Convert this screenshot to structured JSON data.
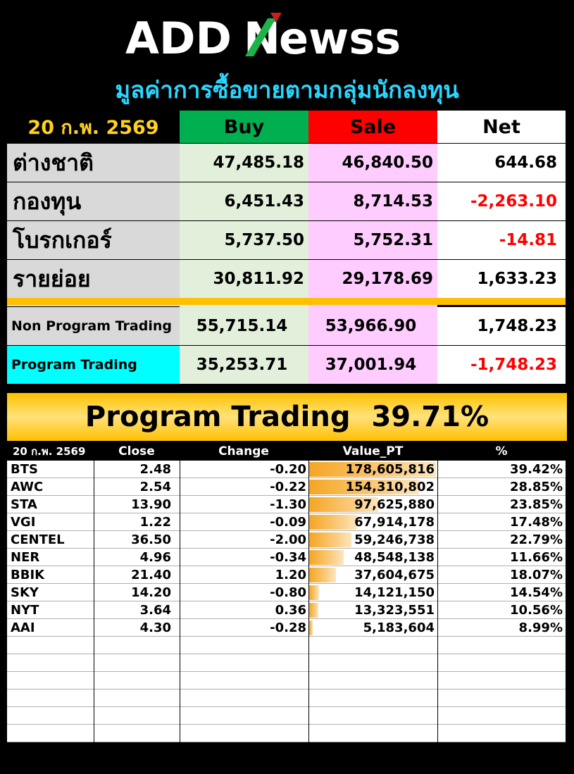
{
  "logo": {
    "text_left": "ADD",
    "text_mid": "N",
    "text_right": "ewss"
  },
  "subtitle": "มูลค่าการซื้อขายตามกลุ่มนักลงทุน",
  "summary": {
    "date": "20 ก.พ. 2569",
    "headers": {
      "buy": "Buy",
      "sale": "Sale",
      "net": "Net"
    },
    "rows": [
      {
        "label": "ต่างชาติ",
        "buy": "47,485.18",
        "sale": "46,840.50",
        "net": "644.68"
      },
      {
        "label": "กองทุน",
        "buy": "6,451.43",
        "sale": "8,714.53",
        "net": "-2,263.10"
      },
      {
        "label": "โบรกเกอร์",
        "buy": "5,737.50",
        "sale": "5,752.31",
        "net": "-14.81"
      },
      {
        "label": "รายย่อย",
        "buy": "30,811.92",
        "sale": "29,178.69",
        "net": "1,633.23"
      }
    ],
    "program_rows": [
      {
        "label": "Non Program Trading",
        "buy": "55,715.14",
        "sale": "53,966.90",
        "net": "1,748.23"
      },
      {
        "label": "Program Trading",
        "buy": "35,253.71",
        "sale": "37,001.94",
        "net": "-1,748.23"
      }
    ]
  },
  "banner": {
    "label": "Program Trading",
    "value": "39.71%"
  },
  "table": {
    "headers": {
      "date": "20 ก.พ. 2569",
      "close": "Close",
      "change": "Change",
      "value": "Value_PT",
      "pct": "%"
    },
    "rows": [
      {
        "symbol": "BTS",
        "close": "2.48",
        "change": "-0.20",
        "value": "178,605,816",
        "value_num": 178605816,
        "pct": "39.42%"
      },
      {
        "symbol": "AWC",
        "close": "2.54",
        "change": "-0.22",
        "value": "154,310,802",
        "value_num": 154310802,
        "pct": "28.85%"
      },
      {
        "symbol": "STA",
        "close": "13.90",
        "change": "-1.30",
        "value": "97,625,880",
        "value_num": 97625880,
        "pct": "23.85%"
      },
      {
        "symbol": "VGI",
        "close": "1.22",
        "change": "-0.09",
        "value": "67,914,178",
        "value_num": 67914178,
        "pct": "17.48%"
      },
      {
        "symbol": "CENTEL",
        "close": "36.50",
        "change": "-2.00",
        "value": "59,246,738",
        "value_num": 59246738,
        "pct": "22.79%"
      },
      {
        "symbol": "NER",
        "close": "4.96",
        "change": "-0.34",
        "value": "48,548,138",
        "value_num": 48548138,
        "pct": "11.66%"
      },
      {
        "symbol": "BBIK",
        "close": "21.40",
        "change": "1.20",
        "value": "37,604,675",
        "value_num": 37604675,
        "pct": "18.07%"
      },
      {
        "symbol": "SKY",
        "close": "14.20",
        "change": "-0.80",
        "value": "14,121,150",
        "value_num": 14121150,
        "pct": "14.54%"
      },
      {
        "symbol": "NYT",
        "close": "3.64",
        "change": "0.36",
        "value": "13,323,551",
        "value_num": 13323551,
        "pct": "10.56%"
      },
      {
        "symbol": "AAI",
        "close": "4.30",
        "change": "-0.28",
        "value": "5,183,604",
        "value_num": 5183604,
        "pct": "8.99%"
      }
    ],
    "empty_rows": 6
  },
  "colors": {
    "buy_header": "#00b050",
    "sale_header": "#ff0000",
    "negative": "#ff0000",
    "positive": "#1a8a1a",
    "subtitle": "#29d7ff",
    "date": "#ffd21f",
    "banner": "#ffc000",
    "program_label": "#00ffff"
  }
}
